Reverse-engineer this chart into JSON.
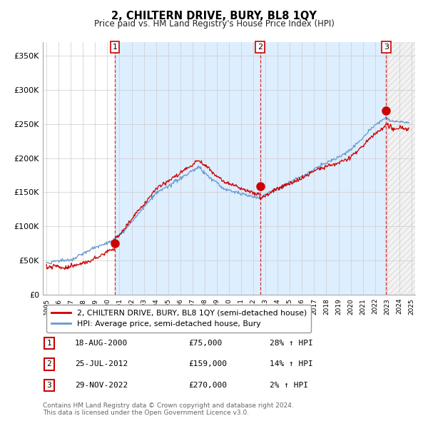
{
  "title": "2, CHILTERN DRIVE, BURY, BL8 1QY",
  "subtitle": "Price paid vs. HM Land Registry's House Price Index (HPI)",
  "legend_line1": "2, CHILTERN DRIVE, BURY, BL8 1QY (semi-detached house)",
  "legend_line2": "HPI: Average price, semi-detached house, Bury",
  "copyright": "Contains HM Land Registry data © Crown copyright and database right 2024.\nThis data is licensed under the Open Government Licence v3.0.",
  "transactions": [
    {
      "num": 1,
      "date": "18-AUG-2000",
      "price": "£75,000",
      "hpi": "28% ↑ HPI",
      "year": 2000.63
    },
    {
      "num": 2,
      "date": "25-JUL-2012",
      "price": "£159,000",
      "hpi": "14% ↑ HPI",
      "year": 2012.56
    },
    {
      "num": 3,
      "date": "29-NOV-2022",
      "price": "£270,000",
      "hpi": "2% ↑ HPI",
      "year": 2022.91
    }
  ],
  "sale_prices": [
    75000,
    159000,
    270000
  ],
  "sale_years": [
    2000.63,
    2012.56,
    2022.91
  ],
  "hpi_color": "#6699cc",
  "price_color": "#cc0000",
  "marker_color": "#cc0000",
  "vline_color": "#cc0000",
  "shade_color": "#ddeeff",
  "ylim": [
    0,
    370000
  ],
  "yticks": [
    0,
    50000,
    100000,
    150000,
    200000,
    250000,
    300000,
    350000
  ],
  "ytick_labels": [
    "£0",
    "£50K",
    "£100K",
    "£150K",
    "£200K",
    "£250K",
    "£300K",
    "£350K"
  ],
  "year_start": 1995,
  "year_end": 2025,
  "background_color": "#ffffff",
  "grid_color": "#cccccc"
}
